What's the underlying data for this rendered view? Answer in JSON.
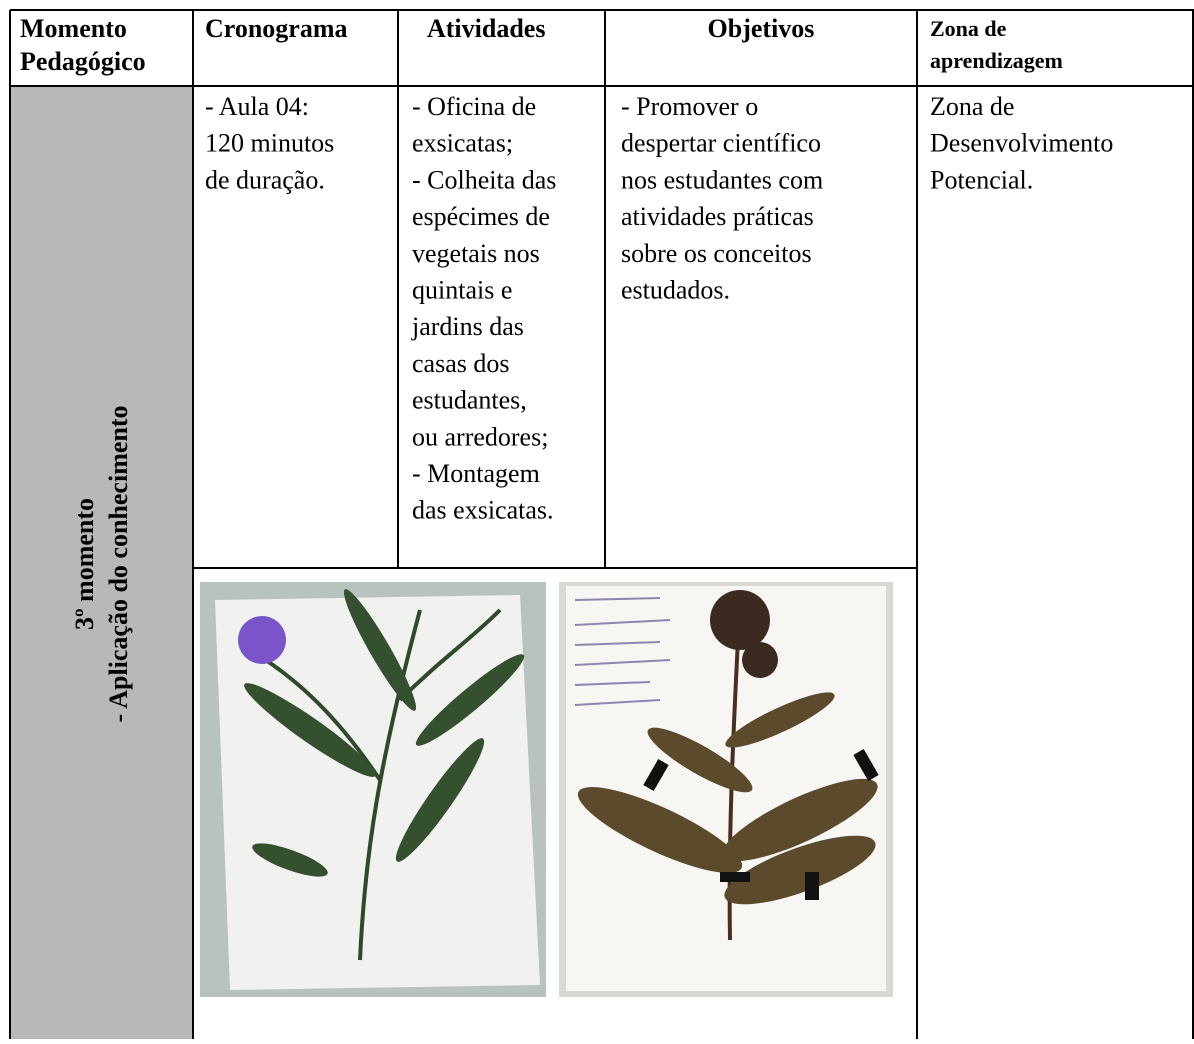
{
  "table": {
    "headers": [
      [
        "Momento",
        "Pedagógico"
      ],
      [
        "Cronograma"
      ],
      [
        "Atividades"
      ],
      [
        "Objetivos"
      ],
      [
        "Zona de",
        "aprendizagem"
      ]
    ],
    "row": {
      "momento": [
        "3º  momento",
        "- Aplicação do conhecimento"
      ],
      "cronograma": [
        "- Aula 04:",
        "120 minutos",
        "de duração."
      ],
      "atividades": [
        "- Oficina de",
        "exsicatas;",
        "- Colheita das",
        "espécimes de",
        "vegetais nos",
        "quintais e",
        "jardins das",
        "casas dos",
        "estudantes,",
        "ou arredores;",
        "- Montagem",
        "das exsicatas."
      ],
      "objetivos": [
        "- Promover o",
        "despertar científico",
        "nos estudantes com",
        "atividades práticas",
        "sobre os conceitos",
        "estudados."
      ],
      "zona": [
        "Zona de",
        "Desenvolvimento",
        "Potencial."
      ]
    }
  }
}
